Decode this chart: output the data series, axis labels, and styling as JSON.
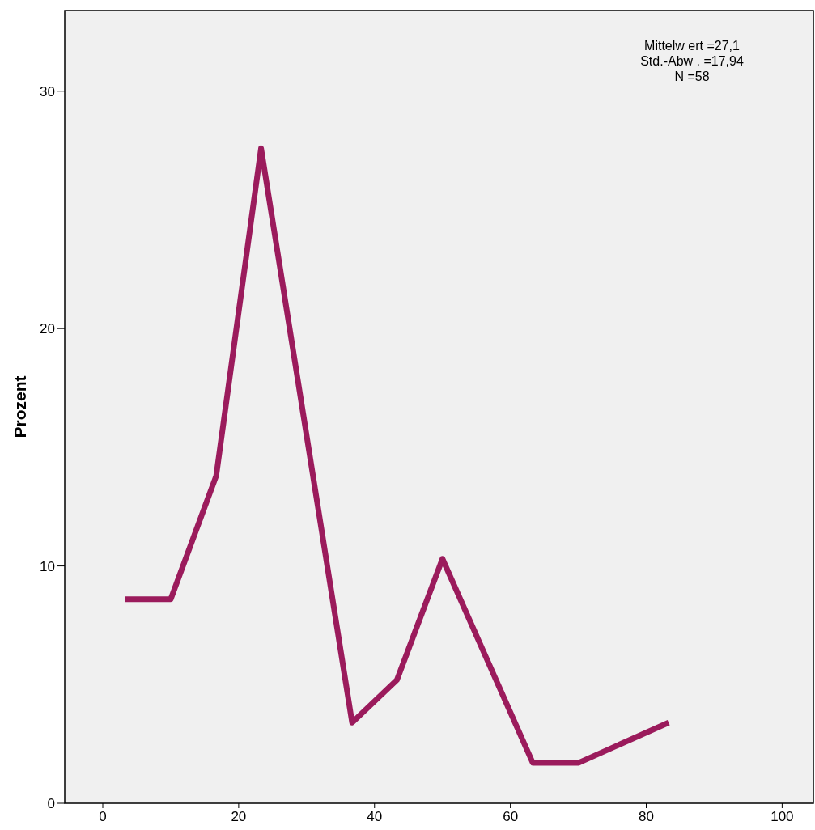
{
  "chart_data": {
    "type": "line",
    "ylabel": "Prozent",
    "x": [
      3.3,
      10,
      16.7,
      23.3,
      36.7,
      43.3,
      50,
      63.3,
      70,
      83.3
    ],
    "series": [
      {
        "color": "#9b1b5c",
        "values": [
          8.6,
          8.6,
          13.8,
          27.6,
          3.4,
          5.2,
          10.3,
          1.7,
          1.7,
          3.4
        ]
      }
    ],
    "xlim": [
      -5.6,
      104.6
    ],
    "ylim": [
      0,
      33.4
    ],
    "xticks": [
      0,
      20,
      40,
      60,
      80,
      100
    ],
    "yticks": [
      0,
      10,
      20,
      30
    ],
    "marker": "none",
    "line_style": "solid",
    "annotations": [
      "Mittelw ert =27,1",
      "Std.-Abw . =17,94",
      "N =58"
    ]
  }
}
